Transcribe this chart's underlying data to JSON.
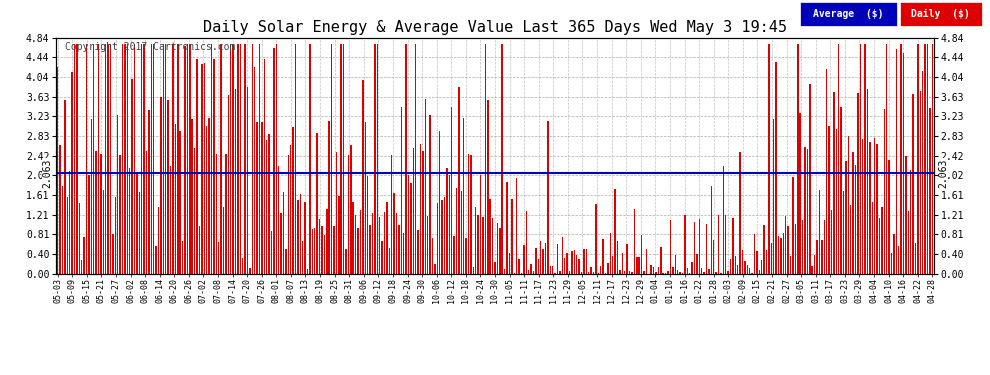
{
  "title": "Daily Solar Energy & Average Value Last 365 Days Wed May 3 19:45",
  "copyright": "Copyright 2017 Cartronics.com",
  "average_value": 2.063,
  "average_label": "2.063",
  "bar_color": "#dd0000",
  "average_line_color": "#0000bb",
  "background_color": "#ffffff",
  "plot_bg_color": "#ffffff",
  "grid_color": "#999999",
  "yticks": [
    0.0,
    0.4,
    0.81,
    1.21,
    1.61,
    2.02,
    2.42,
    2.83,
    3.23,
    3.63,
    4.04,
    4.44,
    4.84
  ],
  "ylim": [
    0,
    4.84
  ],
  "legend_avg_bg": "#0000bb",
  "legend_daily_bg": "#dd0000",
  "legend_text": "Average  ($)",
  "legend_daily_text": "Daily  ($)",
  "x_labels": [
    "05-03",
    "05-09",
    "05-15",
    "05-21",
    "05-27",
    "06-02",
    "06-08",
    "06-14",
    "06-20",
    "06-26",
    "07-02",
    "07-08",
    "07-14",
    "07-20",
    "07-26",
    "08-01",
    "08-07",
    "08-13",
    "08-19",
    "08-25",
    "08-31",
    "09-06",
    "09-12",
    "09-18",
    "09-24",
    "09-30",
    "10-06",
    "10-12",
    "10-18",
    "10-24",
    "10-30",
    "11-05",
    "11-11",
    "11-17",
    "11-23",
    "11-29",
    "12-05",
    "12-11",
    "12-17",
    "12-23",
    "12-29",
    "01-04",
    "01-10",
    "01-16",
    "01-22",
    "01-28",
    "02-03",
    "02-09",
    "02-15",
    "02-21",
    "02-27",
    "03-05",
    "03-11",
    "03-17",
    "03-23",
    "03-29",
    "04-04",
    "04-10",
    "04-16",
    "04-22",
    "04-28"
  ],
  "num_bars": 365,
  "seed": 42
}
